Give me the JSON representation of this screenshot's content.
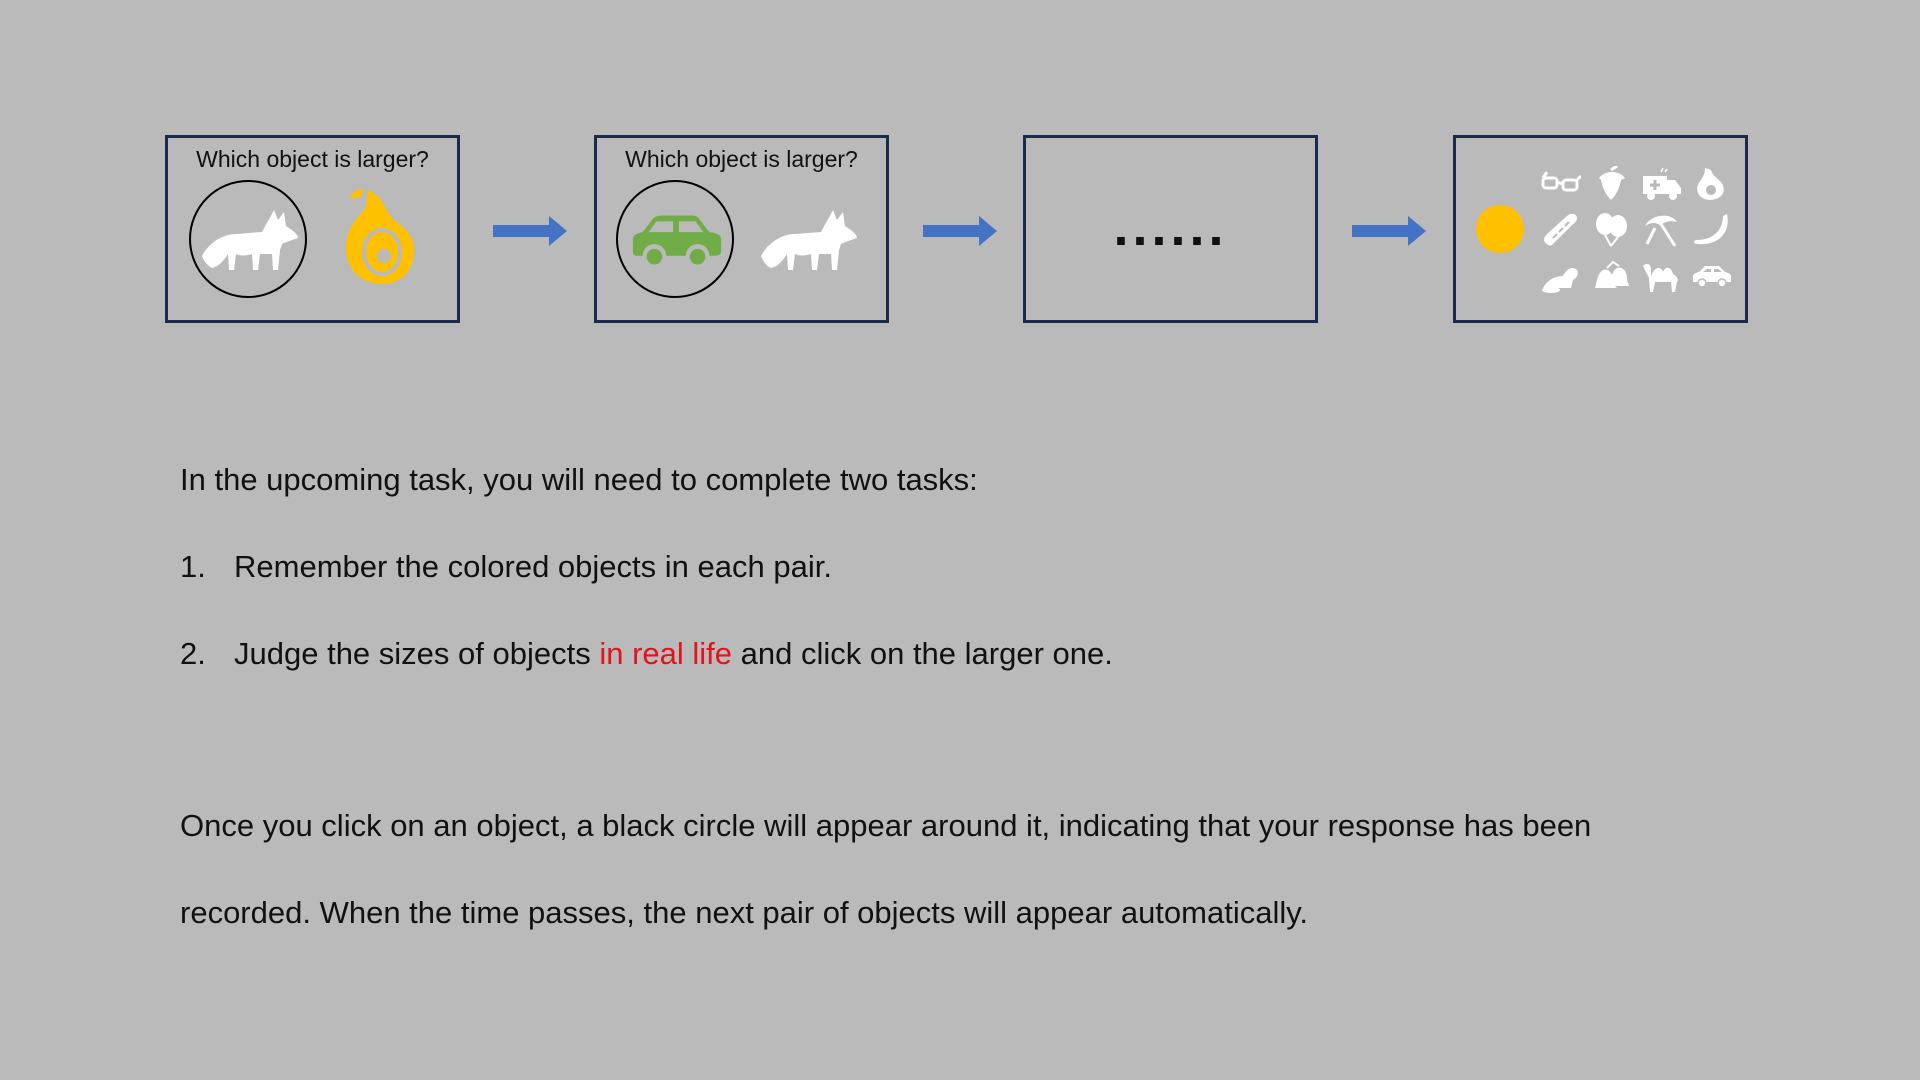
{
  "colors": {
    "background": "#bababa",
    "panel_border": "#1b2a4a",
    "arrow": "#4472c4",
    "yellow": "#ffc000",
    "green": "#70ad47",
    "highlight_red": "#e3121b"
  },
  "panels": [
    {
      "question": "Which object is larger?",
      "left_object": "fox",
      "left_selected": true,
      "right_object": "pear",
      "right_color": "yellow"
    },
    {
      "question": "Which object is larger?",
      "left_object": "car",
      "left_selected": true,
      "left_color": "green",
      "right_object": "fox"
    },
    {
      "ellipsis": "......"
    },
    {
      "colored_object": "yellow-circle",
      "grid_icons": [
        "glasses",
        "acorn",
        "ambulance",
        "pear",
        "baguette",
        "balloons",
        "umbrella",
        "banana",
        "beaver",
        "bells",
        "camel",
        "car"
      ]
    }
  ],
  "instructions": {
    "intro": "In the upcoming task, you will need to complete two tasks:",
    "item1_num": "1.",
    "item1_text": "Remember the colored objects in each pair.",
    "item2_num": "2.",
    "item2_pre": "Judge the sizes of objects ",
    "item2_highlight": "in real life",
    "item2_post": " and click on the larger one.",
    "para_line1": "Once you click on an object, a black circle will appear around it, indicating that your response has been",
    "para_line2": "recorded. When the time passes, the next pair of objects will appear automatically."
  }
}
